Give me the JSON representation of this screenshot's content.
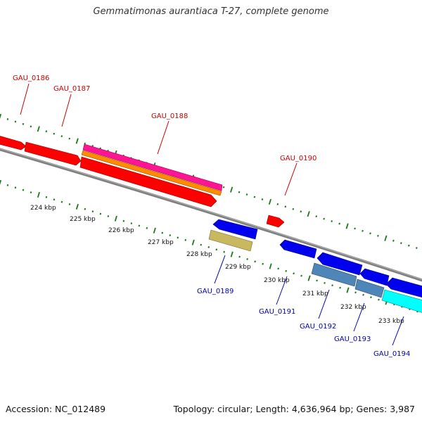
{
  "title": "Gemmatimonas aurantiaca T-27, complete genome",
  "footer": {
    "accession": "Accession: NC_012489",
    "topology": "Topology: circular; Length: 4,636,964 bp; Genes: 3,987"
  },
  "colors": {
    "backbone": "#7f7f7f",
    "tick": "#1a7a1a",
    "label_forward": "#cc0000",
    "label_reverse": "#0000aa",
    "red": "#ff0000",
    "magenta": "#ff1493",
    "orange": "#ff8c00",
    "blue": "#0000ee",
    "khaki": "#c8b860",
    "steelblue": "#4f86b8",
    "cyan": "#00ffff"
  },
  "scale_labels": [
    "224 kbp",
    "225 kbp",
    "226 kbp",
    "227 kbp",
    "228 kbp",
    "229 kbp",
    "230 kbp",
    "231 kbp",
    "232 kbp",
    "233 kbp"
  ],
  "gene_labels": {
    "forward": [
      "GAU_0186",
      "GAU_0187",
      "GAU_0188",
      "GAU_0190"
    ],
    "reverse": [
      "GAU_0189",
      "GAU_0191",
      "GAU_0192",
      "GAU_0193",
      "GAU_0194"
    ]
  }
}
